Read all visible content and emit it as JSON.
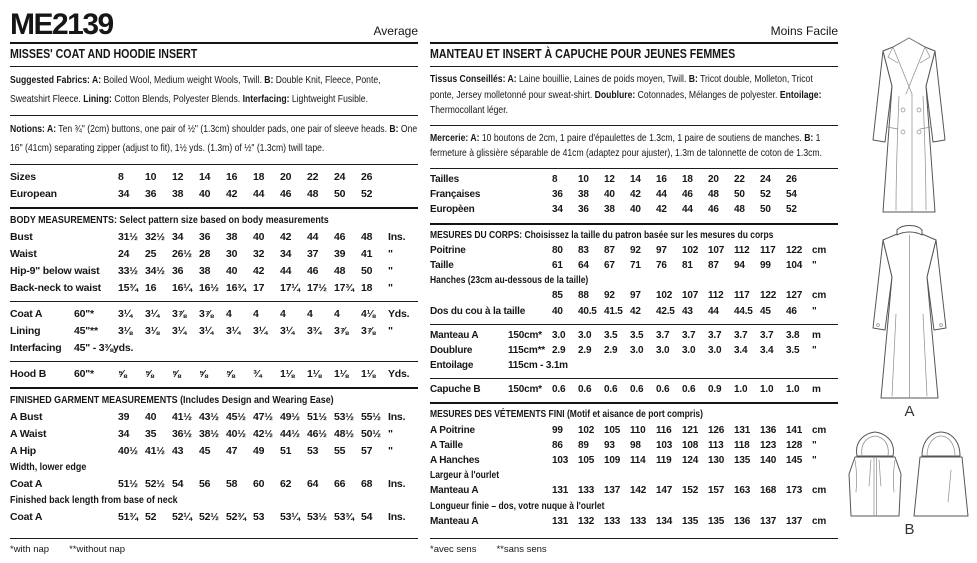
{
  "colors": {
    "ink": "#1c1c1c",
    "paper": "#ffffff"
  },
  "left": {
    "pattern_number": "ME2139",
    "difficulty": "Average",
    "title": "MISSES' COAT AND HOODIE INSERT",
    "fabrics": [
      {
        "b": "Suggested Fabrics: A:"
      },
      {
        "t": " Boiled Wool, Medium weight Wools, Twill. "
      },
      {
        "b": "B:"
      },
      {
        "t": " Double Knit, Fleece, Ponte, Sweatshirt Fleece. "
      },
      {
        "b": "Lining:"
      },
      {
        "t": " Cotton Blends, Polyester Blends. "
      },
      {
        "b": "Interfacing:"
      },
      {
        "t": " Lightweight Fusible."
      }
    ],
    "notions": [
      {
        "b": "Notions: A:"
      },
      {
        "t": " Ten ¾\" (2cm) buttons, one pair of ½\" (1.3cm) shoulder pads, one pair of sleeve heads. "
      },
      {
        "b": "B:"
      },
      {
        "t": " One 16\" (41cm) separating zipper (adjust to fit), 1½ yds. (1.3m) of ½\" (1.3cm) twill tape."
      }
    ],
    "sizes_rows": [
      {
        "label": "Sizes",
        "values": [
          "8",
          "10",
          "12",
          "14",
          "16",
          "18",
          "20",
          "22",
          "24",
          "26"
        ],
        "unit": ""
      },
      {
        "label": "European",
        "values": [
          "34",
          "36",
          "38",
          "40",
          "42",
          "44",
          "46",
          "48",
          "50",
          "52"
        ],
        "unit": ""
      }
    ],
    "body_rows": [
      {
        "full": "BODY MEASUREMENTS: Select pattern size based on body measurements"
      },
      {
        "label": "Bust",
        "values": [
          "31½",
          "32½",
          "34",
          "36",
          "38",
          "40",
          "42",
          "44",
          "46",
          "48"
        ],
        "unit": "Ins."
      },
      {
        "label": "Waist",
        "values": [
          "24",
          "25",
          "26½",
          "28",
          "30",
          "32",
          "34",
          "37",
          "39",
          "41"
        ],
        "unit": "\""
      },
      {
        "label": "Hip-9\" below waist",
        "values": [
          "33½",
          "34½",
          "36",
          "38",
          "40",
          "42",
          "44",
          "46",
          "48",
          "50"
        ],
        "unit": "\""
      },
      {
        "label": "Back-neck to waist",
        "values": [
          "15¾",
          "16",
          "16¼",
          "16½",
          "16¾",
          "17",
          "17¼",
          "17½",
          "17¾",
          "18"
        ],
        "unit": "\""
      }
    ],
    "yardage_rows": [
      {
        "label": "Coat A",
        "width": "60\"*",
        "values": [
          "3¼",
          "3¼",
          "3⅞",
          "3⅞",
          "4",
          "4",
          "4",
          "4",
          "4",
          "4⅛"
        ],
        "unit": "Yds."
      },
      {
        "label": "Lining",
        "width": "45\"**",
        "values": [
          "3⅛",
          "3⅛",
          "3¼",
          "3¼",
          "3¼",
          "3¼",
          "3¼",
          "3¾",
          "3⅞",
          "3⅞"
        ],
        "unit": "\""
      },
      {
        "label": "Interfacing",
        "span": "45\" - 3⅜yds."
      }
    ],
    "hood_rows": [
      {
        "label": "Hood B",
        "width": "60\"*",
        "values": [
          "⅝",
          "⅝",
          "⅝",
          "⅝",
          "⅝",
          "¾",
          "1⅛",
          "1⅛",
          "1⅛",
          "1⅛"
        ],
        "unit": "Yds."
      }
    ],
    "finished_rows": [
      {
        "full": "FINISHED GARMENT MEASUREMENTS (Includes Design and Wearing Ease)"
      },
      {
        "label": "A Bust",
        "values": [
          "39",
          "40",
          "41½",
          "43½",
          "45½",
          "47½",
          "49½",
          "51½",
          "53½",
          "55½"
        ],
        "unit": "Ins."
      },
      {
        "label": "A Waist",
        "values": [
          "34",
          "35",
          "36½",
          "38½",
          "40½",
          "42½",
          "44½",
          "46½",
          "48½",
          "50½"
        ],
        "unit": "\""
      },
      {
        "label": "A Hip",
        "values": [
          "40½",
          "41½",
          "43",
          "45",
          "47",
          "49",
          "51",
          "53",
          "55",
          "57"
        ],
        "unit": "\""
      },
      {
        "full": "Width, lower edge"
      },
      {
        "label": "Coat A",
        "values": [
          "51½",
          "52½",
          "54",
          "56",
          "58",
          "60",
          "62",
          "64",
          "66",
          "68"
        ],
        "unit": "Ins."
      },
      {
        "full": "Finished back length from base of neck"
      },
      {
        "label": "Coat A",
        "values": [
          "51¾",
          "52",
          "52¼",
          "52½",
          "52¾",
          "53",
          "53¼",
          "53½",
          "53¾",
          "54"
        ],
        "unit": "Ins."
      }
    ],
    "footnotes": [
      "*with nap",
      "**without nap"
    ]
  },
  "right": {
    "difficulty": "Moins Facile",
    "title": "MANTEAU ET INSERT À CAPUCHE POUR JEUNES FEMMES",
    "fabrics": [
      {
        "b": "Tissus Conseillés: A:"
      },
      {
        "t": " Laine bouillie, Laines de poids moyen, Twill. "
      },
      {
        "b": "B:"
      },
      {
        "t": " Tricot double, Molleton, Tricot ponte, Jersey molletonné pour sweat-shirt. "
      },
      {
        "b": "Doublure:"
      },
      {
        "t": " Cotonnades, Mélanges de polyester. "
      },
      {
        "b": "Entoilage:"
      },
      {
        "t": " Thermocollant léger."
      }
    ],
    "notions": [
      {
        "b": "Mercerie: A:"
      },
      {
        "t": " 10 boutons de 2cm, 1 paire d'épaulettes de 1.3cm, 1 paire de soutiens de manches. "
      },
      {
        "b": "B:"
      },
      {
        "t": " 1 fermeture à glissière séparable de 41cm (adaptez pour ajuster), 1.3m de talonnette de coton de 1.3cm."
      }
    ],
    "sizes_rows": [
      {
        "label": "Tailles",
        "values": [
          "8",
          "10",
          "12",
          "14",
          "16",
          "18",
          "20",
          "22",
          "24",
          "26"
        ],
        "unit": ""
      },
      {
        "label": "Françaises",
        "values": [
          "36",
          "38",
          "40",
          "42",
          "44",
          "46",
          "48",
          "50",
          "52",
          "54"
        ],
        "unit": ""
      },
      {
        "label": "Europèen",
        "values": [
          "34",
          "36",
          "38",
          "40",
          "42",
          "44",
          "46",
          "48",
          "50",
          "52"
        ],
        "unit": ""
      }
    ],
    "body_rows": [
      {
        "full": "MESURES DU CORPS: Choisissez la taille du patron basée sur les mesures du corps"
      },
      {
        "label": "Poitrine",
        "values": [
          "80",
          "83",
          "87",
          "92",
          "97",
          "102",
          "107",
          "112",
          "117",
          "122"
        ],
        "unit": "cm"
      },
      {
        "label": "Taille",
        "values": [
          "61",
          "64",
          "67",
          "71",
          "76",
          "81",
          "87",
          "94",
          "99",
          "104"
        ],
        "unit": "\""
      },
      {
        "full": "Hanches (23cm au-dessous de la taille)"
      },
      {
        "label": "",
        "values": [
          "85",
          "88",
          "92",
          "97",
          "102",
          "107",
          "112",
          "117",
          "122",
          "127"
        ],
        "unit": "cm"
      },
      {
        "label": "Dos du cou à la taille",
        "values": [
          "40",
          "40.5",
          "41.5",
          "42",
          "42.5",
          "43",
          "44",
          "44.5",
          "45",
          "46"
        ],
        "unit": "\""
      }
    ],
    "yardage_rows": [
      {
        "label": "Manteau A",
        "width": "150cm*",
        "values": [
          "3.0",
          "3.0",
          "3.5",
          "3.5",
          "3.7",
          "3.7",
          "3.7",
          "3.7",
          "3.7",
          "3.8"
        ],
        "unit": "m"
      },
      {
        "label": "Doublure",
        "width": "115cm**",
        "values": [
          "2.9",
          "2.9",
          "2.9",
          "3.0",
          "3.0",
          "3.0",
          "3.0",
          "3.4",
          "3.4",
          "3.5"
        ],
        "unit": "\""
      },
      {
        "label": "Entoilage",
        "span": "115cm - 3.1m"
      }
    ],
    "hood_rows": [
      {
        "label": "Capuche B",
        "width": "150cm*",
        "values": [
          "0.6",
          "0.6",
          "0.6",
          "0.6",
          "0.6",
          "0.6",
          "0.9",
          "1.0",
          "1.0",
          "1.0"
        ],
        "unit": "m"
      }
    ],
    "finished_rows": [
      {
        "full": "MESURES DES VÉTEMENTS FINI (Motif et aisance de port compris)"
      },
      {
        "label": "A Poitrine",
        "values": [
          "99",
          "102",
          "105",
          "110",
          "116",
          "121",
          "126",
          "131",
          "136",
          "141"
        ],
        "unit": "cm"
      },
      {
        "label": "A Taille",
        "values": [
          "86",
          "89",
          "93",
          "98",
          "103",
          "108",
          "113",
          "118",
          "123",
          "128"
        ],
        "unit": "\""
      },
      {
        "label": "A Hanches",
        "values": [
          "103",
          "105",
          "109",
          "114",
          "119",
          "124",
          "130",
          "135",
          "140",
          "145"
        ],
        "unit": "\""
      },
      {
        "full": "Largeur à l'ourlet"
      },
      {
        "label": "Manteau A",
        "values": [
          "131",
          "133",
          "137",
          "142",
          "147",
          "152",
          "157",
          "163",
          "168",
          "173"
        ],
        "unit": "cm"
      },
      {
        "full": "Longueur finie – dos, votre nuque à l'ourlet"
      },
      {
        "label": "Manteau A",
        "values": [
          "131",
          "132",
          "133",
          "133",
          "134",
          "135",
          "135",
          "136",
          "137",
          "137"
        ],
        "unit": "cm"
      }
    ],
    "footnotes": [
      "*avec sens",
      "**sans sens"
    ]
  },
  "illustrations": {
    "view_a_label": "A",
    "view_b_label": "B"
  }
}
